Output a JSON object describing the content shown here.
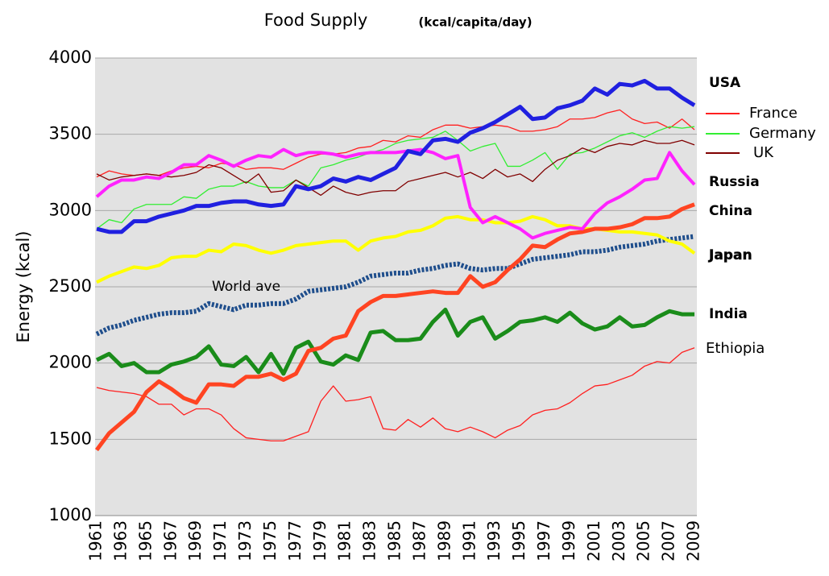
{
  "chart_data": {
    "type": "line",
    "title": "Food Supply",
    "subtitle": "(kcal/capita/day)",
    "y_label": "Energy  (kcal)",
    "x": [
      1961,
      1962,
      1963,
      1964,
      1965,
      1966,
      1967,
      1968,
      1969,
      1970,
      1971,
      1972,
      1973,
      1974,
      1975,
      1976,
      1977,
      1978,
      1979,
      1980,
      1981,
      1982,
      1983,
      1984,
      1985,
      1986,
      1987,
      1988,
      1989,
      1990,
      1991,
      1992,
      1993,
      1994,
      1995,
      1996,
      1997,
      1998,
      1999,
      2000,
      2001,
      2002,
      2003,
      2004,
      2005,
      2006,
      2007,
      2008,
      2009
    ],
    "xlim": [
      1961,
      2009
    ],
    "xticks": [
      1961,
      1963,
      1965,
      1967,
      1969,
      1971,
      1973,
      1975,
      1977,
      1979,
      1981,
      1983,
      1985,
      1987,
      1989,
      1991,
      1993,
      1995,
      1997,
      1999,
      2001,
      2003,
      2005,
      2007,
      2009
    ],
    "ylim": [
      1000,
      4000
    ],
    "yticks": [
      1000,
      1500,
      2000,
      2500,
      3000,
      3500,
      4000
    ],
    "grid": true,
    "series": [
      {
        "name": "France",
        "color": "#ff2020",
        "values": [
          3220,
          3260,
          3240,
          3230,
          3240,
          3230,
          3260,
          3280,
          3290,
          3280,
          3310,
          3300,
          3270,
          3280,
          3280,
          3270,
          3310,
          3350,
          3370,
          3370,
          3380,
          3410,
          3420,
          3460,
          3450,
          3490,
          3480,
          3530,
          3560,
          3560,
          3540,
          3550,
          3560,
          3550,
          3520,
          3520,
          3530,
          3550,
          3600,
          3600,
          3610,
          3640,
          3660,
          3600,
          3570,
          3580,
          3540,
          3600,
          3530
        ]
      },
      {
        "name": "Germany",
        "color": "#33ee33",
        "values": [
          2880,
          2940,
          2920,
          3010,
          3040,
          3040,
          3040,
          3090,
          3080,
          3140,
          3160,
          3160,
          3190,
          3160,
          3150,
          3150,
          3200,
          3160,
          3280,
          3300,
          3330,
          3350,
          3380,
          3400,
          3440,
          3460,
          3470,
          3480,
          3520,
          3460,
          3390,
          3420,
          3440,
          3290,
          3290,
          3330,
          3380,
          3270,
          3370,
          3380,
          3410,
          3450,
          3490,
          3510,
          3480,
          3520,
          3550,
          3540,
          3550
        ]
      },
      {
        "name": "UK",
        "color": "#800000",
        "values": [
          3240,
          3200,
          3220,
          3230,
          3240,
          3230,
          3220,
          3230,
          3250,
          3300,
          3280,
          3230,
          3180,
          3240,
          3120,
          3130,
          3200,
          3150,
          3100,
          3160,
          3120,
          3100,
          3120,
          3130,
          3130,
          3190,
          3210,
          3230,
          3250,
          3220,
          3250,
          3210,
          3270,
          3220,
          3240,
          3190,
          3270,
          3330,
          3360,
          3410,
          3380,
          3420,
          3440,
          3430,
          3460,
          3440,
          3440,
          3460,
          3430
        ]
      },
      {
        "name": "Ethiopia",
        "color": "#ff2020",
        "values": [
          1840,
          1820,
          1810,
          1800,
          1780,
          1730,
          1730,
          1660,
          1700,
          1700,
          1660,
          1570,
          1510,
          1500,
          1490,
          1490,
          1520,
          1550,
          1750,
          1850,
          1750,
          1760,
          1780,
          1570,
          1560,
          1630,
          1580,
          1640,
          1570,
          1550,
          1580,
          1550,
          1510,
          1560,
          1590,
          1660,
          1690,
          1700,
          1740,
          1800,
          1850,
          1860,
          1890,
          1920,
          1980,
          2010,
          2000,
          2070,
          2100
        ]
      },
      {
        "name": "World ave",
        "color": "#1f4e8c",
        "values": [
          2190,
          2230,
          2250,
          2280,
          2300,
          2320,
          2330,
          2330,
          2340,
          2390,
          2370,
          2350,
          2380,
          2380,
          2390,
          2390,
          2420,
          2470,
          2480,
          2490,
          2500,
          2530,
          2570,
          2580,
          2590,
          2590,
          2610,
          2620,
          2640,
          2650,
          2620,
          2610,
          2620,
          2620,
          2650,
          2680,
          2690,
          2700,
          2710,
          2730,
          2730,
          2740,
          2760,
          2770,
          2780,
          2800,
          2810,
          2820,
          2830
        ]
      },
      {
        "name": "Japan",
        "color": "#ffff00",
        "values": [
          2530,
          2570,
          2600,
          2630,
          2620,
          2640,
          2690,
          2700,
          2700,
          2740,
          2730,
          2780,
          2770,
          2740,
          2720,
          2740,
          2770,
          2780,
          2790,
          2800,
          2800,
          2740,
          2800,
          2820,
          2830,
          2860,
          2870,
          2900,
          2950,
          2960,
          2940,
          2940,
          2920,
          2920,
          2930,
          2960,
          2940,
          2900,
          2900,
          2880,
          2880,
          2870,
          2860,
          2860,
          2850,
          2840,
          2800,
          2780,
          2720
        ]
      },
      {
        "name": "India",
        "color": "#1a8c1a",
        "values": [
          2020,
          2060,
          1980,
          2000,
          1940,
          1940,
          1990,
          2010,
          2040,
          2110,
          1990,
          1980,
          2040,
          1940,
          2060,
          1930,
          2100,
          2140,
          2010,
          1990,
          2050,
          2020,
          2200,
          2210,
          2150,
          2150,
          2160,
          2270,
          2350,
          2180,
          2270,
          2300,
          2160,
          2210,
          2270,
          2280,
          2300,
          2270,
          2330,
          2260,
          2220,
          2240,
          2300,
          2240,
          2250,
          2300,
          2340,
          2320,
          2320
        ]
      },
      {
        "name": "China",
        "color": "#ff4422",
        "values": [
          1430,
          1540,
          1610,
          1680,
          1810,
          1880,
          1830,
          1770,
          1740,
          1860,
          1860,
          1850,
          1910,
          1910,
          1930,
          1890,
          1930,
          2080,
          2100,
          2160,
          2180,
          2340,
          2400,
          2440,
          2440,
          2450,
          2460,
          2470,
          2460,
          2460,
          2570,
          2500,
          2530,
          2610,
          2680,
          2770,
          2760,
          2810,
          2850,
          2860,
          2880,
          2880,
          2890,
          2910,
          2950,
          2950,
          2960,
          3010,
          3040
        ]
      },
      {
        "name": "Russia",
        "color": "#ff22ff",
        "values": [
          3090,
          3160,
          3200,
          3200,
          3220,
          3210,
          3250,
          3300,
          3300,
          3360,
          3330,
          3290,
          3330,
          3360,
          3350,
          3400,
          3360,
          3380,
          3380,
          3370,
          3350,
          3370,
          3380,
          3380,
          3380,
          3390,
          3400,
          3380,
          3340,
          3360,
          3020,
          2920,
          2960,
          2920,
          2880,
          2820,
          2850,
          2870,
          2890,
          2880,
          2980,
          3050,
          3090,
          3140,
          3200,
          3210,
          3380,
          3260,
          3170
        ]
      },
      {
        "name": "USA",
        "color": "#2020e0",
        "values": [
          2880,
          2860,
          2860,
          2930,
          2930,
          2960,
          2980,
          3000,
          3030,
          3030,
          3050,
          3060,
          3060,
          3040,
          3030,
          3040,
          3160,
          3140,
          3160,
          3210,
          3190,
          3220,
          3200,
          3240,
          3280,
          3390,
          3370,
          3460,
          3470,
          3450,
          3510,
          3540,
          3580,
          3630,
          3680,
          3600,
          3610,
          3670,
          3690,
          3720,
          3800,
          3760,
          3830,
          3820,
          3850,
          3800,
          3800,
          3740,
          3690
        ]
      }
    ]
  }
}
